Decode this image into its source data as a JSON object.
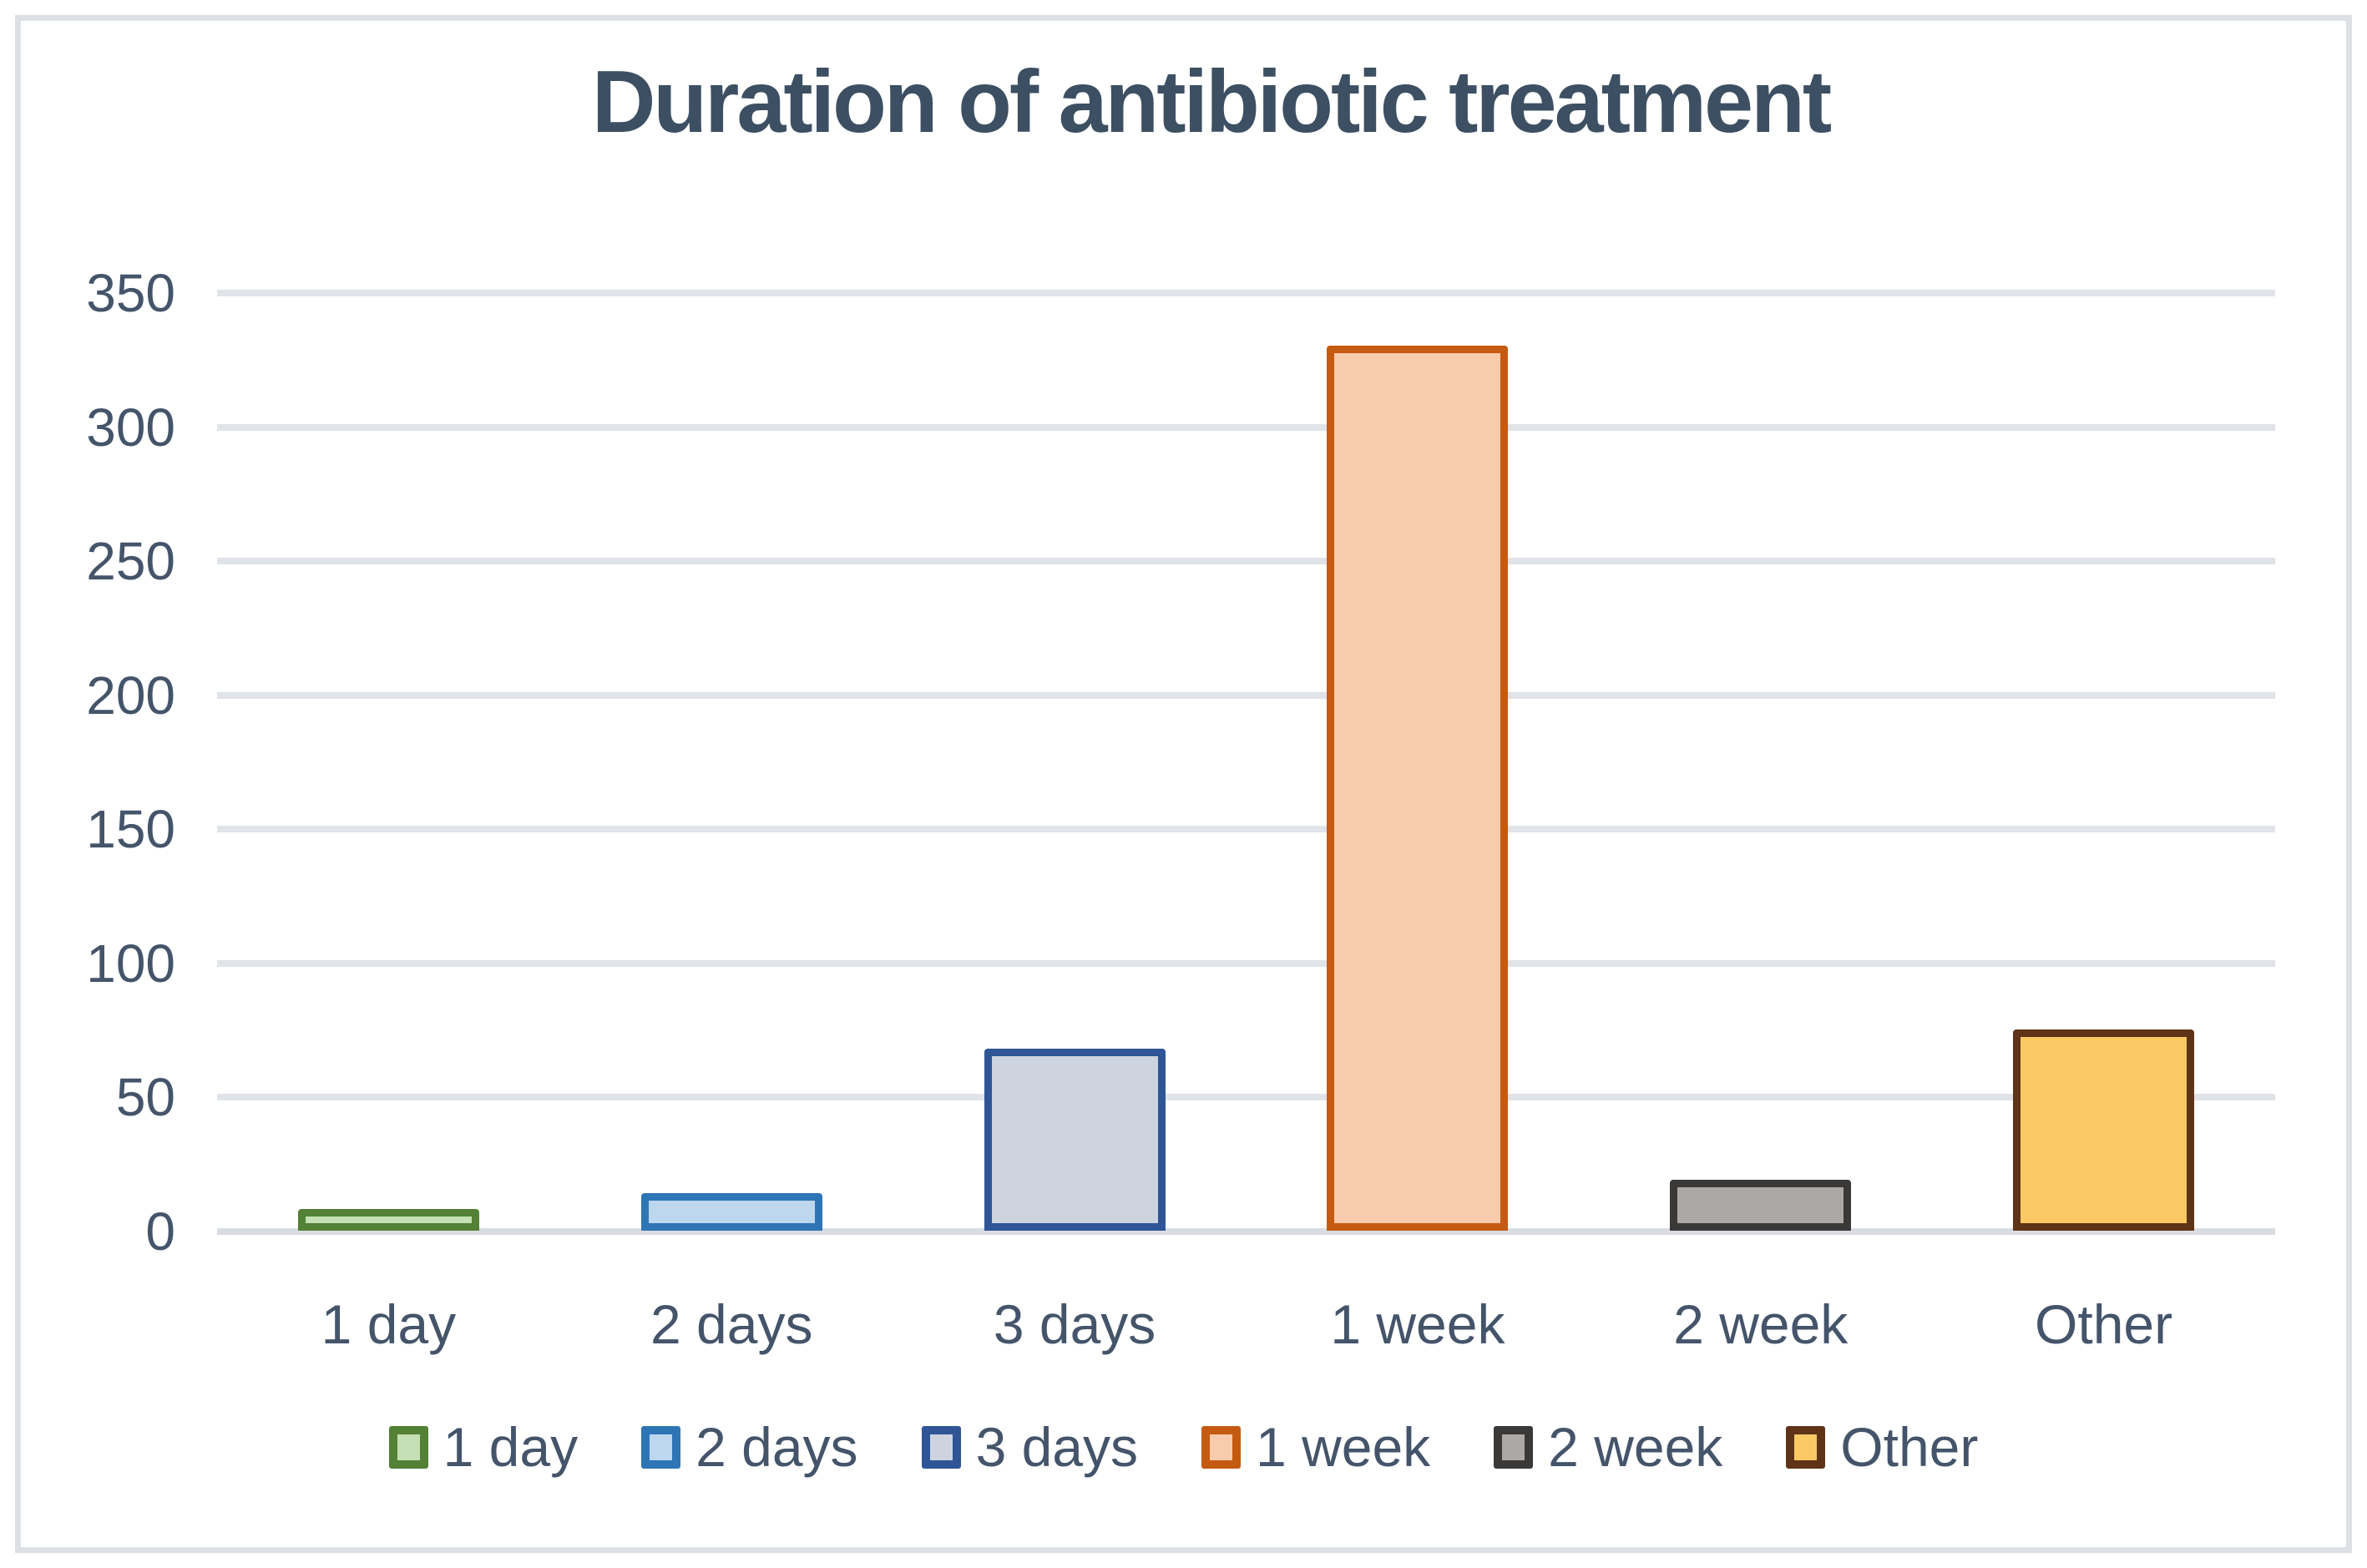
{
  "figure": {
    "background": "#ffffff",
    "border_color": "#dde0e5"
  },
  "chart_data": {
    "type": "bar",
    "title": "Duration of antibiotic treatment",
    "categories": [
      "1 day",
      "2 days",
      "3 days",
      "1 week",
      "2 week",
      "Other"
    ],
    "values": [
      8,
      14,
      68,
      330,
      19,
      75
    ],
    "xlabel": "",
    "ylabel": "",
    "ylim": [
      0,
      350
    ],
    "ytick_step": 50,
    "ytick_labels": [
      "0",
      "50",
      "100",
      "150",
      "200",
      "250",
      "300",
      "350"
    ],
    "grid": true,
    "legend_position": "bottom",
    "legend_entries": [
      "1 day",
      "2 days",
      "3 days",
      "1 week",
      "2 week",
      "Other"
    ],
    "bar_colors": [
      {
        "fill": "#c5e0b4",
        "border": "#538135"
      },
      {
        "fill": "#bdd7ee",
        "border": "#2e75b6"
      },
      {
        "fill": "#cdd4df",
        "border": "#2f5597"
      },
      {
        "fill": "#f8cbad",
        "border": "#c55a11"
      },
      {
        "fill": "#aca8a7",
        "border": "#3b3838"
      },
      {
        "fill": "#fac964",
        "border": "#5e3317"
      }
    ],
    "title_color": "#3d4f63",
    "text_color": "#44546a",
    "gridline_color": "#e0e3e8",
    "axisline_color": "#d9dde2"
  }
}
